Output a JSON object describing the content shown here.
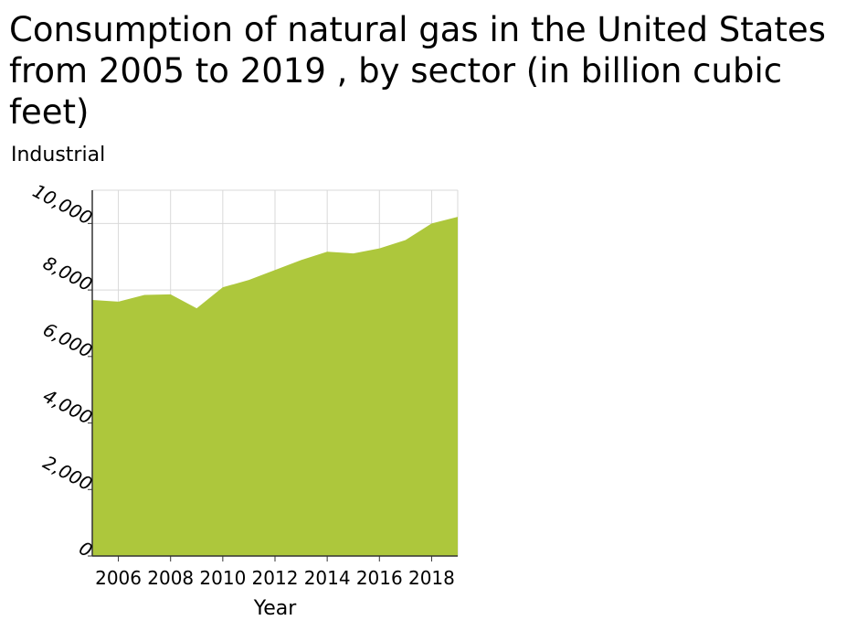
{
  "chart_data": {
    "type": "area",
    "title": "Consumption of natural gas in the United States from 2005 to 2019 , by sector (in billion cubic feet)",
    "ylabel": "Industrial",
    "xlabel": "Year",
    "x": [
      2005,
      2006,
      2007,
      2008,
      2009,
      2010,
      2011,
      2012,
      2013,
      2014,
      2015,
      2016,
      2017,
      2018,
      2019
    ],
    "series": [
      {
        "name": "",
        "values": [
          7700,
          7650,
          7850,
          7870,
          7450,
          8080,
          8300,
          8600,
          8900,
          9150,
          9100,
          9250,
          9500,
          10000,
          10200
        ]
      }
    ],
    "xlim": [
      2005,
      2019
    ],
    "ylim": [
      0,
      11000
    ],
    "yticks": [
      0,
      2000,
      4000,
      6000,
      8000,
      10000
    ],
    "ytick_labels": [
      "0",
      "2,000",
      "4,000",
      "6,000",
      "8,000",
      "10,000"
    ],
    "xticks": [
      2006,
      2008,
      2010,
      2012,
      2014,
      2016,
      2018
    ],
    "xtick_labels": [
      "2006",
      "2008",
      "2010",
      "2012",
      "2014",
      "2016",
      "2018"
    ],
    "grid": true,
    "fill_color": "#adc73c",
    "grid_color": "#d9d9d9"
  }
}
